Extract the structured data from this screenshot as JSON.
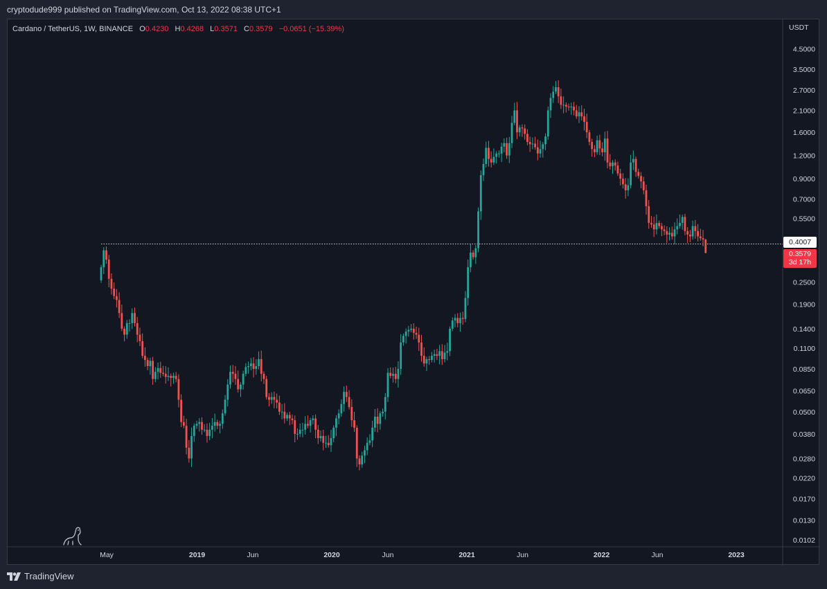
{
  "header": {
    "publisher_text": "cryptodude999 published on TradingView.com, Oct 13, 2022 08:38 UTC+1"
  },
  "legend": {
    "symbol": "Cardano / TetherUS, 1W, BINANCE",
    "open_label": "O",
    "open": "0.4230",
    "high_label": "H",
    "high": "0.4268",
    "low_label": "L",
    "low": "0.3571",
    "close_label": "C",
    "close": "0.3579",
    "change": "−0.0651 (−15.39%)"
  },
  "price_tags": {
    "line_value": "0.4007",
    "last_value": "0.3579",
    "countdown": "3d 17h"
  },
  "footer": {
    "brand": "TradingView"
  },
  "colors": {
    "up": "#26a69a",
    "down": "#ef5350",
    "background": "#131722",
    "axis_text": "#d1d4dc",
    "tag_last": "#f23645"
  },
  "chart_data": {
    "type": "candlestick",
    "scale": "log",
    "currency": "USDT",
    "y_ticks": [
      4.5,
      3.5,
      2.7,
      2.1,
      1.6,
      1.2,
      0.9,
      0.7,
      0.55,
      0.4,
      0.25,
      0.19,
      0.14,
      0.11,
      0.085,
      0.065,
      0.05,
      0.038,
      0.028,
      0.022,
      0.017,
      0.013,
      0.0102
    ],
    "y_tick_labels": [
      "4.5000",
      "3.5000",
      "2.7000",
      "2.1000",
      "1.6000",
      "1.2000",
      "0.9000",
      "0.7000",
      "0.5500",
      "0.4000",
      "0.2500",
      "0.1900",
      "0.1400",
      "0.1100",
      "0.0850",
      "0.0650",
      "0.0500",
      "0.0380",
      "0.0280",
      "0.0220",
      "0.0170",
      "0.0130",
      "0.0102"
    ],
    "ylim": [
      0.0098,
      5.3
    ],
    "x_ticks": [
      {
        "label": "May",
        "date": "2018-05-01",
        "bold": false
      },
      {
        "label": "2019",
        "date": "2019-01-01",
        "bold": true
      },
      {
        "label": "Jun",
        "date": "2019-06-01",
        "bold": false
      },
      {
        "label": "2020",
        "date": "2020-01-01",
        "bold": true
      },
      {
        "label": "Jun",
        "date": "2020-06-01",
        "bold": false
      },
      {
        "label": "2021",
        "date": "2021-01-01",
        "bold": true
      },
      {
        "label": "Jun",
        "date": "2021-06-01",
        "bold": false
      },
      {
        "label": "2022",
        "date": "2022-01-01",
        "bold": true
      },
      {
        "label": "Jun",
        "date": "2022-06-01",
        "bold": false
      },
      {
        "label": "2023",
        "date": "2023-01-01",
        "bold": true
      }
    ],
    "horizontal_line": {
      "value": 0.4007,
      "start_date": "2018-04-16",
      "style": "dotted"
    },
    "series": [
      {
        "date": "2018-04-16",
        "close": 0.3
      },
      {
        "date": "2018-04-23",
        "close": 0.37
      },
      {
        "date": "2018-04-30",
        "close": 0.33
      },
      {
        "date": "2018-05-07",
        "close": 0.26
      },
      {
        "date": "2018-05-14",
        "close": 0.23
      },
      {
        "date": "2018-05-21",
        "close": 0.21
      },
      {
        "date": "2018-05-28",
        "close": 0.2
      },
      {
        "date": "2018-06-04",
        "close": 0.17
      },
      {
        "date": "2018-06-11",
        "close": 0.14
      },
      {
        "date": "2018-06-18",
        "close": 0.13
      },
      {
        "date": "2018-06-25",
        "close": 0.15
      },
      {
        "date": "2018-07-02",
        "close": 0.15
      },
      {
        "date": "2018-07-09",
        "close": 0.17
      },
      {
        "date": "2018-07-16",
        "close": 0.15
      },
      {
        "date": "2018-07-23",
        "close": 0.13
      },
      {
        "date": "2018-07-30",
        "close": 0.12
      },
      {
        "date": "2018-08-06",
        "close": 0.1
      },
      {
        "date": "2018-08-13",
        "close": 0.095
      },
      {
        "date": "2018-08-20",
        "close": 0.088
      },
      {
        "date": "2018-08-27",
        "close": 0.094
      },
      {
        "date": "2018-09-03",
        "close": 0.075
      },
      {
        "date": "2018-09-10",
        "close": 0.082
      },
      {
        "date": "2018-09-17",
        "close": 0.086
      },
      {
        "date": "2018-09-24",
        "close": 0.081
      },
      {
        "date": "2018-10-01",
        "close": 0.08
      },
      {
        "date": "2018-10-08",
        "close": 0.077
      },
      {
        "date": "2018-10-15",
        "close": 0.078
      },
      {
        "date": "2018-10-22",
        "close": 0.076
      },
      {
        "date": "2018-10-29",
        "close": 0.078
      },
      {
        "date": "2018-11-05",
        "close": 0.075
      },
      {
        "date": "2018-11-12",
        "close": 0.058
      },
      {
        "date": "2018-11-19",
        "close": 0.044
      },
      {
        "date": "2018-11-26",
        "close": 0.042
      },
      {
        "date": "2018-12-03",
        "close": 0.032
      },
      {
        "date": "2018-12-10",
        "close": 0.028
      },
      {
        "date": "2018-12-17",
        "close": 0.037
      },
      {
        "date": "2018-12-24",
        "close": 0.042
      },
      {
        "date": "2018-12-31",
        "close": 0.043
      },
      {
        "date": "2019-01-07",
        "close": 0.044
      },
      {
        "date": "2019-01-14",
        "close": 0.04
      },
      {
        "date": "2019-01-21",
        "close": 0.04
      },
      {
        "date": "2019-01-28",
        "close": 0.037
      },
      {
        "date": "2019-02-04",
        "close": 0.04
      },
      {
        "date": "2019-02-11",
        "close": 0.042
      },
      {
        "date": "2019-02-18",
        "close": 0.044
      },
      {
        "date": "2019-02-25",
        "close": 0.042
      },
      {
        "date": "2019-03-04",
        "close": 0.043
      },
      {
        "date": "2019-03-11",
        "close": 0.049
      },
      {
        "date": "2019-03-18",
        "close": 0.058
      },
      {
        "date": "2019-03-25",
        "close": 0.07
      },
      {
        "date": "2019-04-01",
        "close": 0.082
      },
      {
        "date": "2019-04-08",
        "close": 0.08
      },
      {
        "date": "2019-04-15",
        "close": 0.075
      },
      {
        "date": "2019-04-22",
        "close": 0.066
      },
      {
        "date": "2019-04-29",
        "close": 0.07
      },
      {
        "date": "2019-05-06",
        "close": 0.08
      },
      {
        "date": "2019-05-13",
        "close": 0.087
      },
      {
        "date": "2019-05-20",
        "close": 0.088
      },
      {
        "date": "2019-05-27",
        "close": 0.091
      },
      {
        "date": "2019-06-03",
        "close": 0.085
      },
      {
        "date": "2019-06-10",
        "close": 0.088
      },
      {
        "date": "2019-06-17",
        "close": 0.096
      },
      {
        "date": "2019-06-24",
        "close": 0.08
      },
      {
        "date": "2019-07-01",
        "close": 0.075
      },
      {
        "date": "2019-07-08",
        "close": 0.06
      },
      {
        "date": "2019-07-15",
        "close": 0.058
      },
      {
        "date": "2019-07-22",
        "close": 0.06
      },
      {
        "date": "2019-07-29",
        "close": 0.058
      },
      {
        "date": "2019-08-05",
        "close": 0.056
      },
      {
        "date": "2019-08-12",
        "close": 0.05
      },
      {
        "date": "2019-08-19",
        "close": 0.05
      },
      {
        "date": "2019-08-26",
        "close": 0.046
      },
      {
        "date": "2019-09-02",
        "close": 0.048
      },
      {
        "date": "2019-09-09",
        "close": 0.046
      },
      {
        "date": "2019-09-16",
        "close": 0.045
      },
      {
        "date": "2019-09-23",
        "close": 0.038
      },
      {
        "date": "2019-09-30",
        "close": 0.038
      },
      {
        "date": "2019-10-07",
        "close": 0.04
      },
      {
        "date": "2019-10-14",
        "close": 0.04
      },
      {
        "date": "2019-10-21",
        "close": 0.043
      },
      {
        "date": "2019-10-28",
        "close": 0.042
      },
      {
        "date": "2019-11-04",
        "close": 0.045
      },
      {
        "date": "2019-11-11",
        "close": 0.046
      },
      {
        "date": "2019-11-18",
        "close": 0.04
      },
      {
        "date": "2019-11-25",
        "close": 0.036
      },
      {
        "date": "2019-12-02",
        "close": 0.037
      },
      {
        "date": "2019-12-09",
        "close": 0.034
      },
      {
        "date": "2019-12-16",
        "close": 0.034
      },
      {
        "date": "2019-12-23",
        "close": 0.033
      },
      {
        "date": "2019-12-30",
        "close": 0.036
      },
      {
        "date": "2020-01-06",
        "close": 0.041
      },
      {
        "date": "2020-01-13",
        "close": 0.046
      },
      {
        "date": "2020-01-20",
        "close": 0.049
      },
      {
        "date": "2020-01-27",
        "close": 0.055
      },
      {
        "date": "2020-02-03",
        "close": 0.064
      },
      {
        "date": "2020-02-10",
        "close": 0.06
      },
      {
        "date": "2020-02-17",
        "close": 0.053
      },
      {
        "date": "2020-02-24",
        "close": 0.045
      },
      {
        "date": "2020-03-02",
        "close": 0.041
      },
      {
        "date": "2020-03-09",
        "close": 0.028
      },
      {
        "date": "2020-03-16",
        "close": 0.026
      },
      {
        "date": "2020-03-23",
        "close": 0.029
      },
      {
        "date": "2020-03-30",
        "close": 0.031
      },
      {
        "date": "2020-04-06",
        "close": 0.034
      },
      {
        "date": "2020-04-13",
        "close": 0.035
      },
      {
        "date": "2020-04-20",
        "close": 0.041
      },
      {
        "date": "2020-04-27",
        "close": 0.047
      },
      {
        "date": "2020-05-04",
        "close": 0.043
      },
      {
        "date": "2020-05-11",
        "close": 0.049
      },
      {
        "date": "2020-05-18",
        "close": 0.05
      },
      {
        "date": "2020-05-25",
        "close": 0.06
      },
      {
        "date": "2020-06-01",
        "close": 0.081
      },
      {
        "date": "2020-06-08",
        "close": 0.078
      },
      {
        "date": "2020-06-15",
        "close": 0.08
      },
      {
        "date": "2020-06-22",
        "close": 0.075
      },
      {
        "date": "2020-06-29",
        "close": 0.085
      },
      {
        "date": "2020-07-06",
        "close": 0.118
      },
      {
        "date": "2020-07-13",
        "close": 0.128
      },
      {
        "date": "2020-07-20",
        "close": 0.135
      },
      {
        "date": "2020-07-27",
        "close": 0.138
      },
      {
        "date": "2020-08-03",
        "close": 0.14
      },
      {
        "date": "2020-08-10",
        "close": 0.133
      },
      {
        "date": "2020-08-17",
        "close": 0.13
      },
      {
        "date": "2020-08-24",
        "close": 0.118
      },
      {
        "date": "2020-08-31",
        "close": 0.1
      },
      {
        "date": "2020-09-07",
        "close": 0.091
      },
      {
        "date": "2020-09-14",
        "close": 0.096
      },
      {
        "date": "2020-09-21",
        "close": 0.095
      },
      {
        "date": "2020-09-28",
        "close": 0.1
      },
      {
        "date": "2020-10-05",
        "close": 0.102
      },
      {
        "date": "2020-10-12",
        "close": 0.1
      },
      {
        "date": "2020-10-19",
        "close": 0.106
      },
      {
        "date": "2020-10-26",
        "close": 0.096
      },
      {
        "date": "2020-11-02",
        "close": 0.104
      },
      {
        "date": "2020-11-09",
        "close": 0.106
      },
      {
        "date": "2020-11-16",
        "close": 0.14
      },
      {
        "date": "2020-11-23",
        "close": 0.155
      },
      {
        "date": "2020-11-30",
        "close": 0.16
      },
      {
        "date": "2020-12-07",
        "close": 0.15
      },
      {
        "date": "2020-12-14",
        "close": 0.16
      },
      {
        "date": "2020-12-21",
        "close": 0.158
      },
      {
        "date": "2020-12-28",
        "close": 0.205
      },
      {
        "date": "2021-01-04",
        "close": 0.3
      },
      {
        "date": "2021-01-11",
        "close": 0.36
      },
      {
        "date": "2021-01-18",
        "close": 0.34
      },
      {
        "date": "2021-01-25",
        "close": 0.38
      },
      {
        "date": "2021-02-01",
        "close": 0.6
      },
      {
        "date": "2021-02-08",
        "close": 0.94
      },
      {
        "date": "2021-02-15",
        "close": 1.08
      },
      {
        "date": "2021-02-22",
        "close": 1.32
      },
      {
        "date": "2021-03-01",
        "close": 1.15
      },
      {
        "date": "2021-03-08",
        "close": 1.1
      },
      {
        "date": "2021-03-15",
        "close": 1.18
      },
      {
        "date": "2021-03-22",
        "close": 1.23
      },
      {
        "date": "2021-03-29",
        "close": 1.23
      },
      {
        "date": "2021-04-05",
        "close": 1.34
      },
      {
        "date": "2021-04-12",
        "close": 1.4
      },
      {
        "date": "2021-04-19",
        "close": 1.2
      },
      {
        "date": "2021-04-26",
        "close": 1.4
      },
      {
        "date": "2021-05-03",
        "close": 1.8
      },
      {
        "date": "2021-05-10",
        "close": 2.1
      },
      {
        "date": "2021-05-17",
        "close": 1.6
      },
      {
        "date": "2021-05-24",
        "close": 1.7
      },
      {
        "date": "2021-05-31",
        "close": 1.68
      },
      {
        "date": "2021-06-07",
        "close": 1.57
      },
      {
        "date": "2021-06-14",
        "close": 1.42
      },
      {
        "date": "2021-06-21",
        "close": 1.38
      },
      {
        "date": "2021-06-28",
        "close": 1.39
      },
      {
        "date": "2021-07-05",
        "close": 1.33
      },
      {
        "date": "2021-07-12",
        "close": 1.23
      },
      {
        "date": "2021-07-19",
        "close": 1.3
      },
      {
        "date": "2021-07-26",
        "close": 1.38
      },
      {
        "date": "2021-08-02",
        "close": 1.52
      },
      {
        "date": "2021-08-09",
        "close": 2.1
      },
      {
        "date": "2021-08-16",
        "close": 2.45
      },
      {
        "date": "2021-08-23",
        "close": 2.65
      },
      {
        "date": "2021-08-30",
        "close": 2.8
      },
      {
        "date": "2021-09-06",
        "close": 2.5
      },
      {
        "date": "2021-09-13",
        "close": 2.25
      },
      {
        "date": "2021-09-20",
        "close": 2.25
      },
      {
        "date": "2021-09-27",
        "close": 2.2
      },
      {
        "date": "2021-10-04",
        "close": 2.18
      },
      {
        "date": "2021-10-11",
        "close": 2.2
      },
      {
        "date": "2021-10-18",
        "close": 2.1
      },
      {
        "date": "2021-10-25",
        "close": 1.95
      },
      {
        "date": "2021-11-01",
        "close": 2.05
      },
      {
        "date": "2021-11-08",
        "close": 1.95
      },
      {
        "date": "2021-11-15",
        "close": 1.82
      },
      {
        "date": "2021-11-22",
        "close": 1.6
      },
      {
        "date": "2021-11-29",
        "close": 1.42
      },
      {
        "date": "2021-12-06",
        "close": 1.3
      },
      {
        "date": "2021-12-13",
        "close": 1.25
      },
      {
        "date": "2021-12-20",
        "close": 1.45
      },
      {
        "date": "2021-12-27",
        "close": 1.31
      },
      {
        "date": "2022-01-03",
        "close": 1.25
      },
      {
        "date": "2022-01-10",
        "close": 1.48
      },
      {
        "date": "2022-01-17",
        "close": 1.1
      },
      {
        "date": "2022-01-24",
        "close": 1.05
      },
      {
        "date": "2022-01-31",
        "close": 1.1
      },
      {
        "date": "2022-02-07",
        "close": 1.06
      },
      {
        "date": "2022-02-14",
        "close": 0.96
      },
      {
        "date": "2022-02-21",
        "close": 0.9
      },
      {
        "date": "2022-02-28",
        "close": 0.84
      },
      {
        "date": "2022-03-07",
        "close": 0.78
      },
      {
        "date": "2022-03-14",
        "close": 0.83
      },
      {
        "date": "2022-03-21",
        "close": 1.1
      },
      {
        "date": "2022-03-28",
        "close": 1.15
      },
      {
        "date": "2022-04-04",
        "close": 0.98
      },
      {
        "date": "2022-04-11",
        "close": 0.93
      },
      {
        "date": "2022-04-18",
        "close": 0.87
      },
      {
        "date": "2022-04-25",
        "close": 0.78
      },
      {
        "date": "2022-05-02",
        "close": 0.64
      },
      {
        "date": "2022-05-09",
        "close": 0.52
      },
      {
        "date": "2022-05-16",
        "close": 0.51
      },
      {
        "date": "2022-05-23",
        "close": 0.48
      },
      {
        "date": "2022-05-30",
        "close": 0.52
      },
      {
        "date": "2022-06-06",
        "close": 0.5
      },
      {
        "date": "2022-06-13",
        "close": 0.48
      },
      {
        "date": "2022-06-20",
        "close": 0.47
      },
      {
        "date": "2022-06-27",
        "close": 0.45
      },
      {
        "date": "2022-07-04",
        "close": 0.46
      },
      {
        "date": "2022-07-11",
        "close": 0.44
      },
      {
        "date": "2022-07-18",
        "close": 0.48
      },
      {
        "date": "2022-07-25",
        "close": 0.5
      },
      {
        "date": "2022-08-01",
        "close": 0.52
      },
      {
        "date": "2022-08-08",
        "close": 0.56
      },
      {
        "date": "2022-08-15",
        "close": 0.47
      },
      {
        "date": "2022-08-22",
        "close": 0.45
      },
      {
        "date": "2022-08-29",
        "close": 0.44
      },
      {
        "date": "2022-09-05",
        "close": 0.5
      },
      {
        "date": "2022-09-12",
        "close": 0.47
      },
      {
        "date": "2022-09-19",
        "close": 0.44
      },
      {
        "date": "2022-09-26",
        "close": 0.43
      },
      {
        "date": "2022-10-03",
        "close": 0.423
      },
      {
        "date": "2022-10-10",
        "open": 0.423,
        "high": 0.4268,
        "low": 0.3571,
        "close": 0.3579
      }
    ]
  }
}
